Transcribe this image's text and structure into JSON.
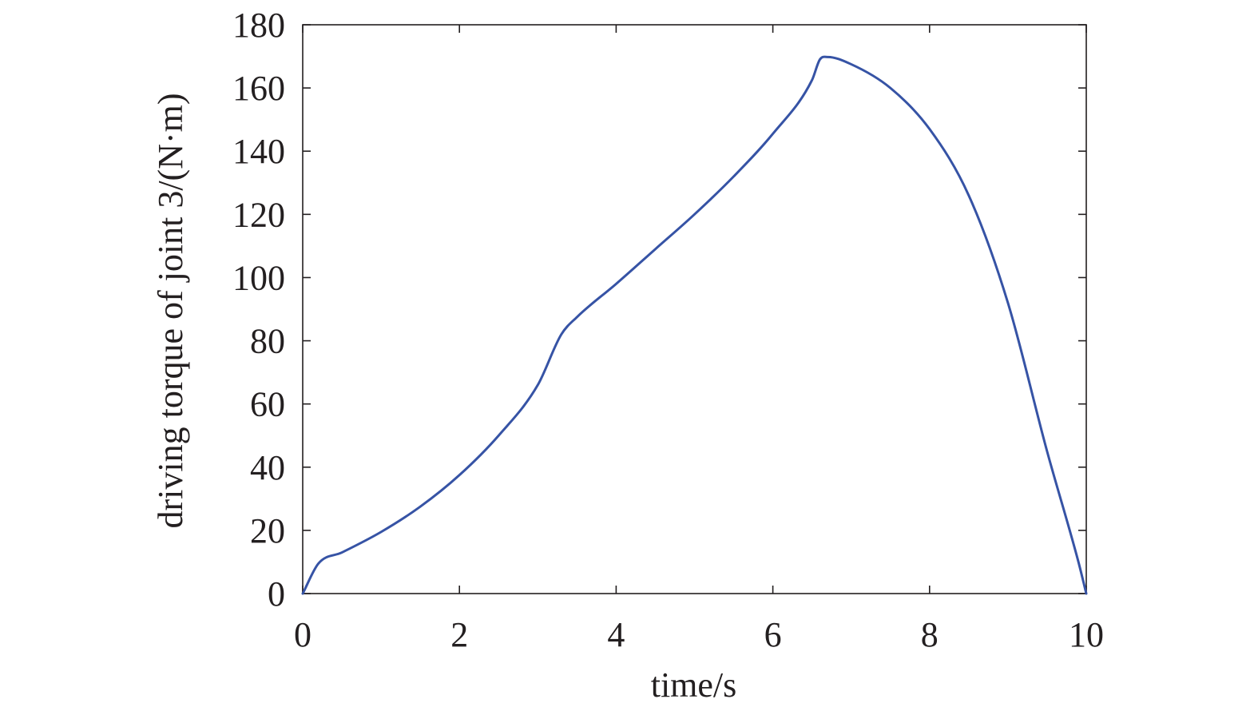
{
  "chart_data": {
    "type": "line",
    "title": "",
    "xlabel": "time/s",
    "ylabel": "driving torque of joint 3/(N·m)",
    "xlim": [
      0,
      10
    ],
    "ylim": [
      0,
      180
    ],
    "xticks": [
      0,
      2,
      4,
      6,
      8,
      10
    ],
    "yticks": [
      0,
      20,
      40,
      60,
      80,
      100,
      120,
      140,
      160,
      180
    ],
    "grid": false,
    "legend": "none",
    "colors": {
      "line": "#3653a5",
      "axis": "#231f20"
    },
    "series": [
      {
        "x": [
          0,
          0.2,
          0.5,
          1.0,
          1.5,
          2.0,
          2.5,
          3.0,
          3.3,
          3.5,
          4.0,
          4.5,
          5.0,
          5.5,
          6.0,
          6.5,
          6.6,
          6.7,
          7.0,
          7.5,
          8.0,
          8.5,
          9.0,
          9.5,
          9.9,
          10.0
        ],
        "y": [
          0,
          9.5,
          13,
          19.5,
          27.5,
          37.5,
          50,
          66,
          82,
          87.5,
          98,
          109,
          120,
          132,
          145.5,
          162.5,
          169,
          169.8,
          167.5,
          160,
          147,
          126,
          92,
          45,
          10,
          0
        ]
      }
    ]
  }
}
